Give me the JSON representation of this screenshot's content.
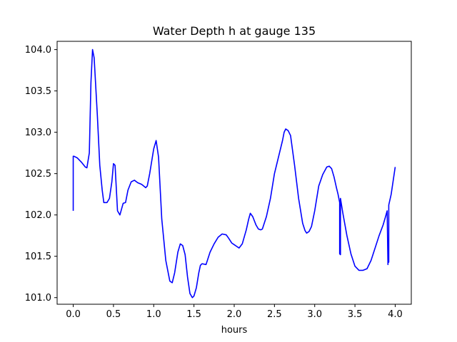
{
  "chart_data": {
    "type": "line",
    "title": "Water Depth h at gauge 135",
    "xlabel": "hours",
    "ylabel": "",
    "xlim": [
      -0.2,
      4.2
    ],
    "ylim": [
      100.92,
      104.1
    ],
    "xticks": [
      0.0,
      0.5,
      1.0,
      1.5,
      2.0,
      2.5,
      3.0,
      3.5,
      4.0
    ],
    "xtick_labels": [
      "0.0",
      "0.5",
      "1.0",
      "1.5",
      "2.0",
      "2.5",
      "3.0",
      "3.5",
      "4.0"
    ],
    "yticks": [
      101.0,
      101.5,
      102.0,
      102.5,
      103.0,
      103.5,
      104.0
    ],
    "ytick_labels": [
      "101.0",
      "101.5",
      "102.0",
      "102.5",
      "103.0",
      "103.5",
      "104.0"
    ],
    "grid": false,
    "series": [
      {
        "color": "#0000ff",
        "x": [
          0.0,
          0.0,
          0.01,
          0.05,
          0.1,
          0.15,
          0.17,
          0.2,
          0.22,
          0.24,
          0.26,
          0.28,
          0.3,
          0.33,
          0.36,
          0.38,
          0.42,
          0.45,
          0.48,
          0.5,
          0.52,
          0.55,
          0.58,
          0.62,
          0.65,
          0.68,
          0.72,
          0.76,
          0.8,
          0.85,
          0.9,
          0.92,
          0.95,
          1.0,
          1.03,
          1.06,
          1.1,
          1.15,
          1.2,
          1.23,
          1.26,
          1.3,
          1.33,
          1.36,
          1.39,
          1.42,
          1.45,
          1.48,
          1.5,
          1.53,
          1.56,
          1.58,
          1.6,
          1.65,
          1.7,
          1.75,
          1.8,
          1.85,
          1.9,
          1.93,
          1.97,
          2.0,
          2.03,
          2.06,
          2.1,
          2.15,
          2.18,
          2.2,
          2.23,
          2.27,
          2.3,
          2.33,
          2.35,
          2.4,
          2.45,
          2.5,
          2.55,
          2.6,
          2.62,
          2.64,
          2.67,
          2.7,
          2.75,
          2.8,
          2.85,
          2.88,
          2.9,
          2.93,
          2.96,
          3.0,
          3.05,
          3.1,
          3.15,
          3.18,
          3.21,
          3.24,
          3.27,
          3.29,
          3.31,
          3.31,
          3.32,
          3.32,
          3.35,
          3.4,
          3.45,
          3.5,
          3.55,
          3.6,
          3.65,
          3.7,
          3.75,
          3.8,
          3.85,
          3.88,
          3.9,
          3.91,
          3.91,
          3.92,
          3.92,
          3.95,
          4.0
        ],
        "y": [
          102.05,
          102.71,
          102.71,
          102.69,
          102.64,
          102.58,
          102.57,
          102.75,
          103.6,
          104.0,
          103.9,
          103.55,
          103.2,
          102.6,
          102.3,
          102.15,
          102.15,
          102.2,
          102.4,
          102.62,
          102.6,
          102.05,
          102.0,
          102.14,
          102.15,
          102.3,
          102.4,
          102.42,
          102.39,
          102.37,
          102.33,
          102.35,
          102.5,
          102.8,
          102.9,
          102.7,
          101.95,
          101.45,
          101.2,
          101.18,
          101.3,
          101.55,
          101.65,
          101.63,
          101.52,
          101.25,
          101.05,
          101.0,
          101.02,
          101.12,
          101.3,
          101.39,
          101.41,
          101.4,
          101.55,
          101.65,
          101.73,
          101.77,
          101.76,
          101.72,
          101.66,
          101.64,
          101.62,
          101.6,
          101.65,
          101.82,
          101.95,
          102.02,
          101.98,
          101.88,
          101.83,
          101.82,
          101.83,
          101.98,
          102.2,
          102.5,
          102.7,
          102.9,
          103.0,
          103.04,
          103.02,
          102.96,
          102.6,
          102.2,
          101.9,
          101.81,
          101.78,
          101.8,
          101.86,
          102.05,
          102.35,
          102.49,
          102.58,
          102.59,
          102.56,
          102.46,
          102.33,
          102.25,
          102.15,
          101.53,
          101.52,
          102.2,
          102.02,
          101.75,
          101.53,
          101.38,
          101.33,
          101.33,
          101.35,
          101.45,
          101.6,
          101.75,
          101.88,
          101.98,
          102.05,
          101.4,
          101.42,
          101.43,
          102.12,
          102.25,
          102.58
        ]
      }
    ]
  }
}
